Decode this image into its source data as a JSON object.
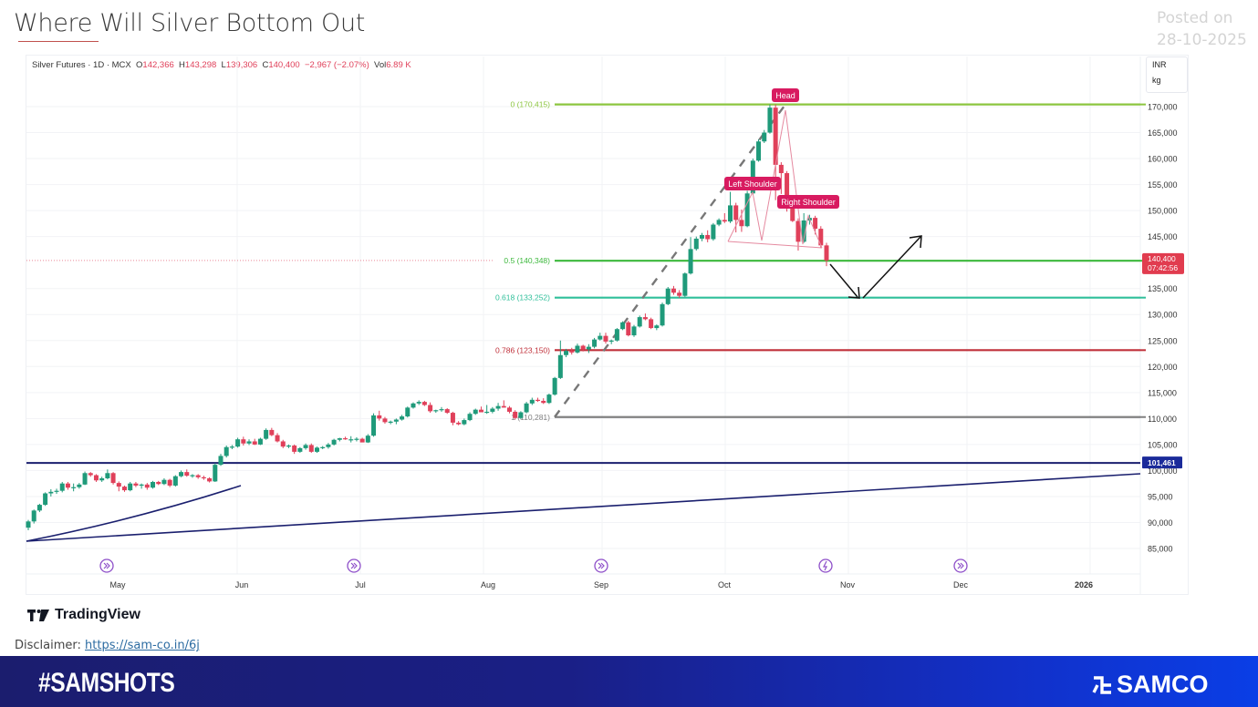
{
  "page": {
    "title": "Where Will Silver Bottom Out",
    "posted_label": "Posted on",
    "posted_date": "28-10-2025"
  },
  "legend": {
    "symbol": "Silver Futures · 1D · MCX",
    "open_label": "O",
    "open": "142,366",
    "high_label": "H",
    "high": "143,298",
    "low_label": "L",
    "low": "139,306",
    "close_label": "C",
    "close": "140,400",
    "change": "−2,967 (−2.07%)",
    "vol_label": "Vol",
    "vol": "6.89 K"
  },
  "units": {
    "currency": "INR",
    "unit": "kg"
  },
  "footer": {
    "brand": "TradingView",
    "disclaimer_label": "Disclaimer:",
    "disclaimer_link": "https://sam-co.in/6j",
    "hashtag": "#SAMSHOTS",
    "logo": "SAMCO"
  },
  "colors": {
    "up": "#1f9a7a",
    "down": "#e0405a",
    "fib0": "#8cc63f",
    "fib05": "#3cb83c",
    "fib0618": "#2fbf9a",
    "fib0786": "#c0303a",
    "fib1": "#808080",
    "navy": "#1a1f6e",
    "pattern": "#d81b60"
  },
  "chart_data": {
    "type": "candlestick",
    "title": "Silver Futures · 1D · MCX",
    "xlabel": "",
    "ylabel": "INR / kg",
    "ylim": [
      83000,
      176000
    ],
    "grid": true,
    "y_ticks": [
      "170,000",
      "165,000",
      "160,000",
      "155,000",
      "150,000",
      "145,000",
      "135,000",
      "130,000",
      "125,000",
      "120,000",
      "115,000",
      "110,000",
      "105,000",
      "100,000",
      "95,000",
      "90,000",
      "85,000"
    ],
    "x_ticks": [
      "May",
      "Jun",
      "Jul",
      "Aug",
      "Sep",
      "Oct",
      "Nov",
      "Dec",
      "2026"
    ],
    "last_price": {
      "value": "140,400",
      "countdown": "07:42:56"
    },
    "horizontal_level": {
      "value": "101,461"
    },
    "fibonacci": [
      {
        "level": "0",
        "price": "170,415",
        "label": "0 (170,415)"
      },
      {
        "level": "0.5",
        "price": "140,348",
        "label": "0.5 (140,348)"
      },
      {
        "level": "0.618",
        "price": "133,252",
        "label": "0.618 (133,252)"
      },
      {
        "level": "0.786",
        "price": "123,150",
        "label": "0.786 (123,150)"
      },
      {
        "level": "1",
        "price": "110,281",
        "label": "1 (110,281)"
      }
    ],
    "annotations": [
      "Head",
      "Left Shoulder",
      "Right Shoulder"
    ],
    "candles_ohlc_approx": [
      [
        89000,
        90500,
        88500,
        90200
      ],
      [
        90200,
        92500,
        89800,
        92300
      ],
      [
        92300,
        93600,
        92000,
        93400
      ],
      [
        93400,
        95800,
        93200,
        95600
      ],
      [
        95600,
        96400,
        95000,
        95900
      ],
      [
        95900,
        96500,
        95500,
        96100
      ],
      [
        96100,
        97800,
        95800,
        97500
      ],
      [
        97500,
        97800,
        96300,
        96700
      ],
      [
        96700,
        97500,
        96000,
        96800
      ],
      [
        96800,
        97600,
        96500,
        97300
      ],
      [
        97300,
        99800,
        97200,
        99500
      ],
      [
        99500,
        99700,
        98800,
        99100
      ],
      [
        99100,
        99300,
        97800,
        98100
      ],
      [
        98100,
        98800,
        97800,
        98500
      ],
      [
        98500,
        100200,
        98300,
        99500
      ],
      [
        99500,
        99700,
        97300,
        97600
      ],
      [
        97600,
        97900,
        96000,
        96900
      ],
      [
        96900,
        97100,
        95900,
        96200
      ],
      [
        96200,
        97800,
        96000,
        97500
      ],
      [
        97500,
        97800,
        96800,
        97100
      ],
      [
        97100,
        97500,
        96500,
        97300
      ],
      [
        97300,
        97600,
        96300,
        96700
      ],
      [
        96700,
        98000,
        96500,
        97800
      ],
      [
        97800,
        98000,
        97200,
        97400
      ],
      [
        97400,
        98500,
        97200,
        98200
      ],
      [
        98200,
        98400,
        96800,
        97100
      ],
      [
        97100,
        99100,
        96900,
        98900
      ],
      [
        98900,
        100000,
        98700,
        99700
      ],
      [
        99700,
        100200,
        98800,
        99000
      ],
      [
        99000,
        99300,
        98600,
        99100
      ],
      [
        99100,
        99300,
        98400,
        98700
      ],
      [
        98700,
        99000,
        98200,
        98500
      ],
      [
        98500,
        98700,
        97700,
        97900
      ],
      [
        97900,
        101400,
        97800,
        101100
      ],
      [
        101100,
        103200,
        100900,
        102800
      ],
      [
        102800,
        104800,
        102500,
        104500
      ],
      [
        104500,
        104900,
        104100,
        104600
      ],
      [
        104600,
        106300,
        104400,
        106000
      ],
      [
        106000,
        106500,
        104800,
        105200
      ],
      [
        105200,
        106000,
        104900,
        105600
      ],
      [
        105600,
        106100,
        104900,
        105000
      ],
      [
        105000,
        106300,
        104900,
        106100
      ],
      [
        106100,
        108100,
        105900,
        107800
      ],
      [
        107800,
        108200,
        106600,
        106800
      ],
      [
        106800,
        107200,
        105400,
        105600
      ],
      [
        105600,
        105900,
        104300,
        104600
      ],
      [
        104600,
        105000,
        104300,
        104800
      ],
      [
        104800,
        105000,
        103200,
        103600
      ],
      [
        103600,
        104500,
        103400,
        104300
      ],
      [
        104300,
        105200,
        104000,
        104900
      ],
      [
        104900,
        105200,
        103400,
        103600
      ],
      [
        103600,
        104600,
        103400,
        104400
      ],
      [
        104400,
        104700,
        104100,
        104500
      ],
      [
        104500,
        105300,
        104200,
        105000
      ],
      [
        105000,
        106100,
        104800,
        105900
      ],
      [
        105900,
        106300,
        105600,
        106200
      ],
      [
        106200,
        106500,
        105900,
        106000
      ],
      [
        106000,
        106600,
        105400,
        106000
      ],
      [
        106000,
        106400,
        105600,
        106100
      ],
      [
        106100,
        106300,
        105500,
        105400
      ],
      [
        105400,
        107000,
        105300,
        106700
      ],
      [
        106700,
        111000,
        106500,
        110600
      ],
      [
        110600,
        111500,
        109600,
        110000
      ],
      [
        110000,
        110300,
        109000,
        109300
      ],
      [
        109300,
        109600,
        108900,
        109400
      ],
      [
        109400,
        110000,
        108900,
        109800
      ],
      [
        109800,
        110700,
        109600,
        110400
      ],
      [
        110400,
        112300,
        110200,
        112100
      ],
      [
        112100,
        113100,
        111900,
        112900
      ],
      [
        112900,
        113500,
        112600,
        113200
      ],
      [
        113200,
        113400,
        112400,
        112600
      ],
      [
        112600,
        113100,
        111100,
        111400
      ],
      [
        111400,
        111700,
        111100,
        111600
      ],
      [
        111600,
        112200,
        111300,
        111800
      ],
      [
        111800,
        112000,
        110900,
        111100
      ],
      [
        111100,
        111300,
        108700,
        109200
      ],
      [
        109200,
        109500,
        108700,
        108900
      ],
      [
        108900,
        110000,
        108700,
        109700
      ],
      [
        109700,
        111200,
        109500,
        110900
      ],
      [
        110900,
        111900,
        110700,
        111700
      ],
      [
        111700,
        112300,
        111300,
        111200
      ],
      [
        111200,
        112600,
        110900,
        111300
      ],
      [
        111300,
        112200,
        111000,
        111900
      ],
      [
        111900,
        113000,
        111500,
        112400
      ],
      [
        112400,
        113500,
        112100,
        112100
      ],
      [
        112100,
        112400,
        111000,
        111300
      ],
      [
        111300,
        111600,
        109800,
        110100
      ],
      [
        110100,
        111400,
        109900,
        111200
      ],
      [
        111200,
        113200,
        111000,
        112900
      ],
      [
        112900,
        114000,
        112600,
        113600
      ],
      [
        113600,
        114000,
        113200,
        113400
      ],
      [
        113400,
        113900,
        112800,
        113000
      ],
      [
        113000,
        114800,
        112800,
        114600
      ],
      [
        114600,
        118000,
        114400,
        117800
      ],
      [
        117800,
        125000,
        117600,
        122200
      ],
      [
        122200,
        123400,
        121800,
        123000
      ],
      [
        123000,
        123600,
        122300,
        122700
      ],
      [
        122700,
        124400,
        122500,
        124000
      ],
      [
        124000,
        124200,
        122900,
        123300
      ],
      [
        123300,
        124300,
        122600,
        123800
      ],
      [
        123800,
        125500,
        123500,
        125200
      ],
      [
        125200,
        126500,
        125000,
        125900
      ],
      [
        125900,
        126500,
        124400,
        124800
      ],
      [
        124800,
        125200,
        124300,
        125000
      ],
      [
        125000,
        127400,
        124800,
        127200
      ],
      [
        127200,
        128700,
        127000,
        128500
      ],
      [
        128500,
        128800,
        125800,
        126000
      ],
      [
        126000,
        128000,
        125700,
        127700
      ],
      [
        127700,
        129800,
        127500,
        129500
      ],
      [
        129500,
        130200,
        128900,
        129100
      ],
      [
        129100,
        129400,
        127200,
        127400
      ],
      [
        127400,
        128100,
        127000,
        127900
      ],
      [
        127900,
        132300,
        127700,
        132000
      ],
      [
        132000,
        135300,
        131800,
        135000
      ],
      [
        135000,
        135500,
        133800,
        134200
      ],
      [
        134200,
        134700,
        133200,
        133600
      ],
      [
        133600,
        138100,
        133400,
        137900
      ],
      [
        137900,
        144900,
        137700,
        142600
      ],
      [
        142600,
        145000,
        142300,
        144600
      ],
      [
        144600,
        145700,
        144100,
        145300
      ],
      [
        145300,
        146200,
        143900,
        144500
      ],
      [
        144500,
        147600,
        144200,
        147300
      ],
      [
        147300,
        148500,
        147000,
        148200
      ],
      [
        148200,
        149500,
        147600,
        147900
      ],
      [
        147900,
        153600,
        147600,
        151000
      ],
      [
        151000,
        151500,
        145800,
        148200
      ],
      [
        148200,
        150200,
        145900,
        147000
      ],
      [
        147000,
        153800,
        146800,
        153300
      ],
      [
        153300,
        160000,
        153100,
        159600
      ],
      [
        159600,
        163700,
        159400,
        163300
      ],
      [
        163300,
        165500,
        163000,
        165000
      ],
      [
        165000,
        170400,
        164800,
        169800
      ],
      [
        169800,
        170415,
        152000,
        158800
      ],
      [
        158800,
        159300,
        153200,
        157200
      ],
      [
        157200,
        157600,
        149800,
        152000
      ],
      [
        152000,
        152500,
        147800,
        148000
      ],
      [
        148000,
        148500,
        142300,
        144000
      ],
      [
        144000,
        149500,
        143800,
        148100
      ],
      [
        148100,
        149200,
        147300,
        148600
      ],
      [
        148600,
        149000,
        145400,
        146500
      ],
      [
        146500,
        147000,
        142800,
        143300
      ],
      [
        143300,
        143800,
        139300,
        140400
      ]
    ],
    "projection_path": [
      [
        "now",
        140400
      ],
      [
        "~early Nov",
        133250
      ],
      [
        "~mid Nov",
        145000
      ]
    ]
  }
}
